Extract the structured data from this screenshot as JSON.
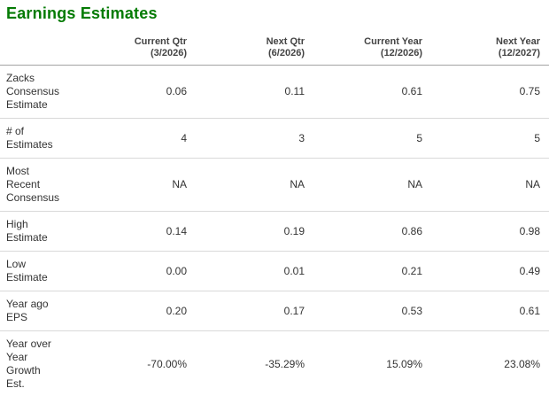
{
  "widget": {
    "title": "Earnings Estimates"
  },
  "colors": {
    "title_green": "#047b04",
    "header_border": "#a3a3a3",
    "row_border": "#d9d9d9",
    "text": "#333333"
  },
  "table": {
    "columns": [
      "Current Qtr\n(3/2026)",
      "Next Qtr\n(6/2026)",
      "Current Year\n(12/2026)",
      "Next Year\n(12/2027)"
    ],
    "rows": [
      {
        "label": "Zacks\nConsensus\nEstimate",
        "values": [
          "0.06",
          "0.11",
          "0.61",
          "0.75"
        ]
      },
      {
        "label": "# of\nEstimates",
        "values": [
          "4",
          "3",
          "5",
          "5"
        ]
      },
      {
        "label": "Most\nRecent\nConsensus",
        "values": [
          "NA",
          "NA",
          "NA",
          "NA"
        ]
      },
      {
        "label": "High\nEstimate",
        "values": [
          "0.14",
          "0.19",
          "0.86",
          "0.98"
        ]
      },
      {
        "label": "Low\nEstimate",
        "values": [
          "0.00",
          "0.01",
          "0.21",
          "0.49"
        ]
      },
      {
        "label": "Year ago\nEPS",
        "values": [
          "0.20",
          "0.17",
          "0.53",
          "0.61"
        ]
      },
      {
        "label": "Year over\nYear\nGrowth\nEst.",
        "values": [
          "-70.00%",
          "-35.29%",
          "15.09%",
          "23.08%"
        ]
      }
    ]
  }
}
